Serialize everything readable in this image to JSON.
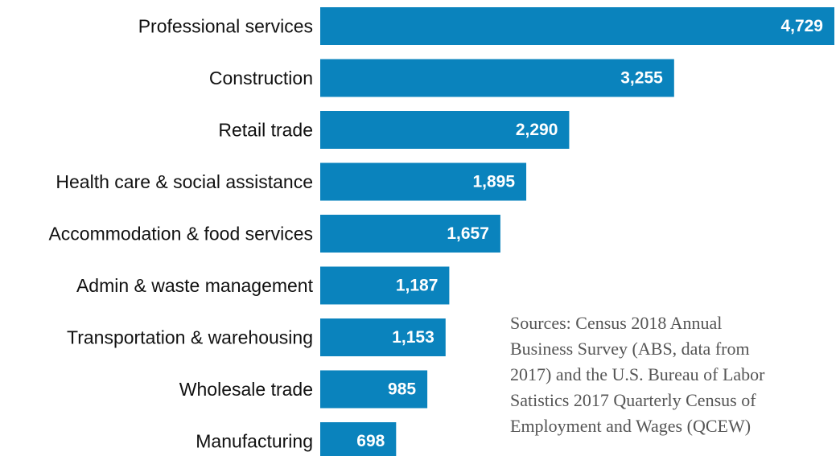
{
  "chart_data": {
    "type": "bar",
    "orientation": "horizontal",
    "categories": [
      "Professional services",
      "Construction",
      "Retail trade",
      "Health care & social assistance",
      "Accommodation & food services",
      "Admin & waste management",
      "Transportation & warehousing",
      "Wholesale trade",
      "Manufacturing"
    ],
    "values": [
      4729,
      3255,
      2290,
      1895,
      1657,
      1187,
      1153,
      985,
      698
    ],
    "value_labels": [
      "4,729",
      "3,255",
      "2,290",
      "1,895",
      "1,657",
      "1,187",
      "1,153",
      "985",
      "698"
    ],
    "title": "",
    "xlabel": "",
    "ylabel": "",
    "xlim": [
      0,
      4729
    ],
    "grid": false,
    "legend": "none",
    "bar_color": "#0a83bd",
    "annotation": "Sources: Census 2018 Annual Business Survey (ABS, data from 2017) and the U.S. Bureau of Labor Satistics 2017 Quarterly Census of Employment and Wages (QCEW)"
  },
  "source_note_lines": [
    "Sources: Census 2018 Annual",
    "Business Survey (ABS, data from",
    "2017) and the U.S. Bureau of Labor",
    "Satistics 2017 Quarterly Census of",
    "Employment and Wages (QCEW)"
  ]
}
